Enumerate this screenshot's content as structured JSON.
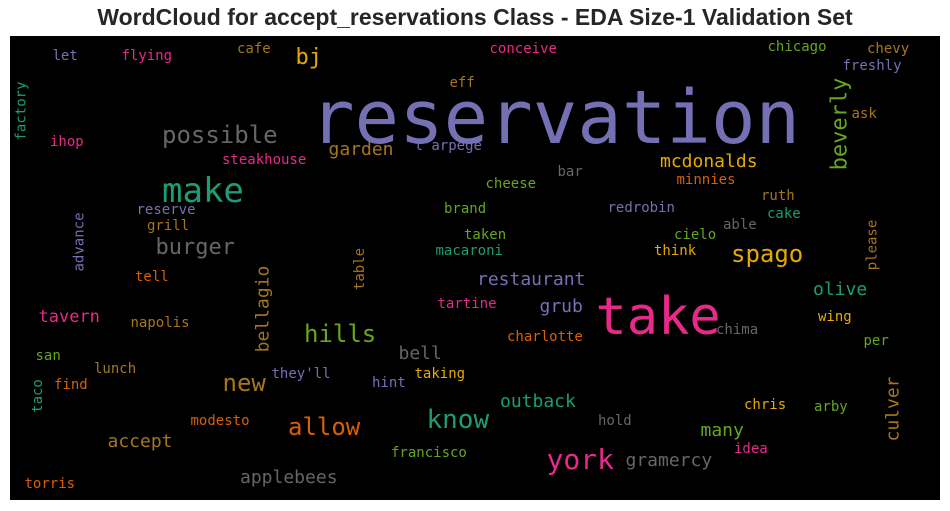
{
  "title": "WordCloud for accept_reservations Class - EDA Size-1 Validation Set",
  "words": [
    {
      "text": "reservation",
      "color": "#7570b3"
    },
    {
      "text": "take",
      "color": "#e7298a"
    },
    {
      "text": "make",
      "color": "#1b9e77"
    },
    {
      "text": "possible",
      "color": "#666666"
    },
    {
      "text": "bj",
      "color": "#e6ab02"
    },
    {
      "text": "burger",
      "color": "#666666"
    },
    {
      "text": "beverly",
      "color": "#66a61e"
    },
    {
      "text": "garden",
      "color": "#a6761d"
    },
    {
      "text": "mcdonalds",
      "color": "#e6ab02"
    },
    {
      "text": "spago",
      "color": "#e6ab02"
    },
    {
      "text": "restaurant",
      "color": "#7570b3"
    },
    {
      "text": "hills",
      "color": "#66a61e"
    },
    {
      "text": "bellagio",
      "color": "#a6761d"
    },
    {
      "text": "new",
      "color": "#a6761d"
    },
    {
      "text": "allow",
      "color": "#d95f02"
    },
    {
      "text": "know",
      "color": "#1b9e77"
    },
    {
      "text": "york",
      "color": "#e7298a"
    },
    {
      "text": "applebees",
      "color": "#666666"
    },
    {
      "text": "accept",
      "color": "#a6761d"
    },
    {
      "text": "gramercy",
      "color": "#666666"
    },
    {
      "text": "culver",
      "color": "#a6761d"
    },
    {
      "text": "outback",
      "color": "#1b9e77"
    },
    {
      "text": "many",
      "color": "#66a61e"
    },
    {
      "text": "olive",
      "color": "#1b9e77"
    },
    {
      "text": "grub",
      "color": "#7570b3"
    },
    {
      "text": "tavern",
      "color": "#e7298a"
    },
    {
      "text": "bell",
      "color": "#666666"
    },
    {
      "text": "flying",
      "color": "#e7298a"
    },
    {
      "text": "let",
      "color": "#7570b3"
    },
    {
      "text": "cafe",
      "color": "#a6761d"
    },
    {
      "text": "conceive",
      "color": "#e7298a"
    },
    {
      "text": "chicago",
      "color": "#66a61e"
    },
    {
      "text": "chevy",
      "color": "#a6761d"
    },
    {
      "text": "freshly",
      "color": "#7570b3"
    },
    {
      "text": "factory",
      "color": "#1b9e77"
    },
    {
      "text": "ihop",
      "color": "#e7298a"
    },
    {
      "text": "eff",
      "color": "#a6761d"
    },
    {
      "text": "l'arpege",
      "color": "#7570b3"
    },
    {
      "text": "steakhouse",
      "color": "#e7298a"
    },
    {
      "text": "ask",
      "color": "#a6761d"
    },
    {
      "text": "bar",
      "color": "#666666"
    },
    {
      "text": "cheese",
      "color": "#66a61e"
    },
    {
      "text": "minnies",
      "color": "#d95f02"
    },
    {
      "text": "ruth",
      "color": "#a6761d"
    },
    {
      "text": "cake",
      "color": "#1b9e77"
    },
    {
      "text": "able",
      "color": "#666666"
    },
    {
      "text": "redrobin",
      "color": "#7570b3"
    },
    {
      "text": "brand",
      "color": "#66a61e"
    },
    {
      "text": "reserve",
      "color": "#7570b3"
    },
    {
      "text": "grill",
      "color": "#a6761d"
    },
    {
      "text": "advance",
      "color": "#7570b3"
    },
    {
      "text": "taken",
      "color": "#66a61e"
    },
    {
      "text": "macaroni",
      "color": "#1b9e77"
    },
    {
      "text": "cielo",
      "color": "#66a61e"
    },
    {
      "text": "think",
      "color": "#e6ab02"
    },
    {
      "text": "please",
      "color": "#a6761d"
    },
    {
      "text": "table",
      "color": "#a6761d"
    },
    {
      "text": "tell",
      "color": "#d95f02"
    },
    {
      "text": "tartine",
      "color": "#e7298a"
    },
    {
      "text": "napolis",
      "color": "#a6761d"
    },
    {
      "text": "charlotte",
      "color": "#d95f02"
    },
    {
      "text": "chima",
      "color": "#666666"
    },
    {
      "text": "wing",
      "color": "#e6ab02"
    },
    {
      "text": "per",
      "color": "#66a61e"
    },
    {
      "text": "san",
      "color": "#66a61e"
    },
    {
      "text": "lunch",
      "color": "#a6761d"
    },
    {
      "text": "they'll",
      "color": "#7570b3"
    },
    {
      "text": "taking",
      "color": "#e6ab02"
    },
    {
      "text": "hint",
      "color": "#7570b3"
    },
    {
      "text": "find",
      "color": "#d95f02"
    },
    {
      "text": "taco",
      "color": "#1b9e77"
    },
    {
      "text": "chris",
      "color": "#e6ab02"
    },
    {
      "text": "arby",
      "color": "#66a61e"
    },
    {
      "text": "modesto",
      "color": "#d95f02"
    },
    {
      "text": "hold",
      "color": "#666666"
    },
    {
      "text": "idea",
      "color": "#e7298a"
    },
    {
      "text": "francisco",
      "color": "#66a61e"
    },
    {
      "text": "torris",
      "color": "#d95f02"
    }
  ]
}
